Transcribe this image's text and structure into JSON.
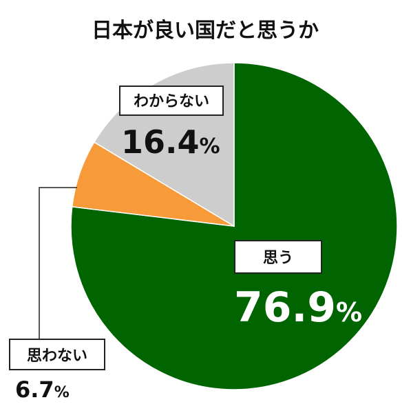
{
  "chart_data": {
    "type": "pie",
    "title": "日本が良い国だと思うか",
    "unit": "%",
    "slices": [
      {
        "label": "思う",
        "value": 76.9,
        "color": "#006400"
      },
      {
        "label": "思わない",
        "value": 6.7,
        "color": "#f79a3a"
      },
      {
        "label": "わからない",
        "value": 16.4,
        "color": "#cdcdcd"
      }
    ]
  }
}
